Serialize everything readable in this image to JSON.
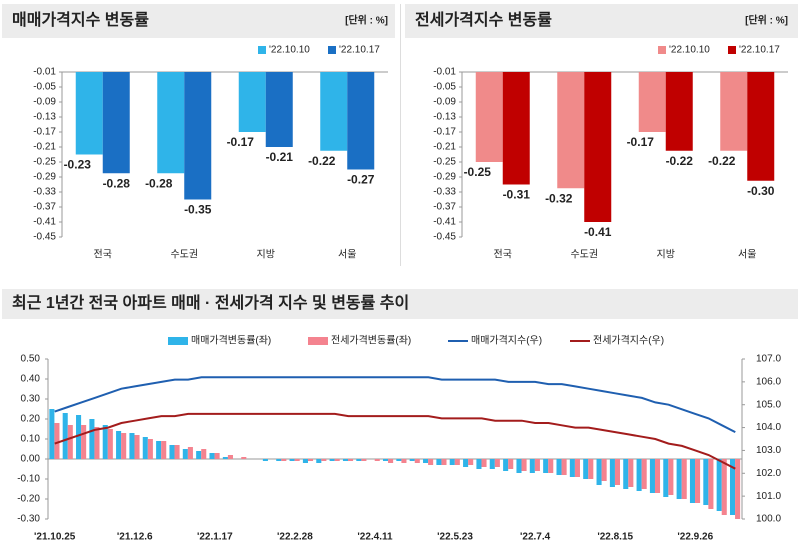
{
  "chart_data": [
    {
      "type": "bar",
      "title": "매매가격지수 변동률",
      "unit": "[단위 : %]",
      "categories": [
        "전국",
        "수도권",
        "지방",
        "서울"
      ],
      "series": [
        {
          "name": "'22.10.10",
          "color": "#2fb4e9",
          "values": [
            -0.23,
            -0.28,
            -0.17,
            -0.22
          ],
          "value_labels": [
            "-0.23",
            "-0.28",
            "-0.17",
            "-0.22"
          ]
        },
        {
          "name": "'22.10.17",
          "color": "#1a6fc4",
          "values": [
            -0.28,
            -0.35,
            -0.21,
            -0.27
          ],
          "value_labels": [
            "-0.28",
            "-0.35",
            "-0.21",
            "-0.27"
          ]
        }
      ],
      "ylim": [
        -0.45,
        -0.01
      ],
      "yticks": [
        -0.01,
        -0.05,
        -0.09,
        -0.13,
        -0.17,
        -0.21,
        -0.25,
        -0.29,
        -0.33,
        -0.37,
        -0.41,
        -0.45
      ]
    },
    {
      "type": "bar",
      "title": "전세가격지수 변동률",
      "unit": "[단위 : %]",
      "categories": [
        "전국",
        "수도권",
        "지방",
        "서울"
      ],
      "series": [
        {
          "name": "'22.10.10",
          "color": "#f08a8a",
          "values": [
            -0.25,
            -0.32,
            -0.17,
            -0.22
          ],
          "value_labels": [
            "-0.25",
            "-0.32",
            "-0.17",
            "-0.22"
          ]
        },
        {
          "name": "'22.10.17",
          "color": "#c00000",
          "values": [
            -0.31,
            -0.41,
            -0.22,
            -0.3
          ],
          "value_labels": [
            "-0.31",
            "-0.41",
            "-0.22",
            "-0.30"
          ]
        }
      ],
      "ylim": [
        -0.45,
        -0.01
      ],
      "yticks": [
        -0.01,
        -0.05,
        -0.09,
        -0.13,
        -0.17,
        -0.21,
        -0.25,
        -0.29,
        -0.33,
        -0.37,
        -0.41,
        -0.45
      ]
    },
    {
      "type": "combo",
      "title": "최근 1년간 전국 아파트 매매 · 전세가격 지수 및 변동률 추이",
      "categories": [
        "'21.10.25",
        null,
        null,
        null,
        null,
        null,
        "'21.12.6",
        null,
        null,
        null,
        null,
        null,
        "'22.1.17",
        null,
        null,
        null,
        null,
        null,
        "'22.2.28",
        null,
        null,
        null,
        null,
        null,
        "'22.4.11",
        null,
        null,
        null,
        null,
        null,
        "'22.5.23",
        null,
        null,
        null,
        null,
        null,
        "'22.7.4",
        null,
        null,
        null,
        null,
        null,
        "'22.8.15",
        null,
        null,
        null,
        null,
        null,
        "'22.9.26",
        null,
        null,
        null
      ],
      "series": [
        {
          "name": "매매가격변동률(좌)",
          "type": "bar",
          "color": "#2fb4e9",
          "values": [
            0.25,
            0.23,
            0.22,
            0.2,
            0.17,
            0.14,
            0.13,
            0.11,
            0.09,
            0.07,
            0.05,
            0.04,
            0.03,
            0.01,
            0.0,
            0.0,
            -0.01,
            -0.01,
            -0.01,
            -0.02,
            -0.02,
            -0.01,
            -0.01,
            -0.01,
            0.0,
            -0.01,
            -0.01,
            -0.01,
            -0.02,
            -0.03,
            -0.03,
            -0.04,
            -0.05,
            -0.05,
            -0.06,
            -0.07,
            -0.07,
            -0.07,
            -0.08,
            -0.09,
            -0.1,
            -0.13,
            -0.14,
            -0.15,
            -0.16,
            -0.17,
            -0.19,
            -0.2,
            -0.22,
            -0.23,
            -0.26,
            -0.28
          ]
        },
        {
          "name": "전세가격변동률(좌)",
          "type": "bar",
          "color": "#f4838f",
          "values": [
            0.18,
            0.17,
            0.17,
            0.16,
            0.15,
            0.13,
            0.12,
            0.1,
            0.09,
            0.07,
            0.06,
            0.05,
            0.03,
            0.02,
            0.01,
            0.0,
            0.0,
            -0.01,
            -0.01,
            -0.01,
            -0.01,
            -0.01,
            -0.01,
            -0.01,
            -0.01,
            -0.02,
            -0.02,
            -0.02,
            -0.03,
            -0.03,
            -0.03,
            -0.03,
            -0.04,
            -0.04,
            -0.05,
            -0.06,
            -0.06,
            -0.07,
            -0.08,
            -0.09,
            -0.1,
            -0.11,
            -0.13,
            -0.14,
            -0.15,
            -0.17,
            -0.18,
            -0.2,
            -0.22,
            -0.25,
            -0.28,
            -0.3
          ]
        },
        {
          "name": "매매가격지수(우)",
          "type": "line",
          "axis": "y2",
          "color": "#1f5fb0",
          "values": [
            104.7,
            104.9,
            105.1,
            105.3,
            105.5,
            105.7,
            105.8,
            105.9,
            106.0,
            106.1,
            106.1,
            106.2,
            106.2,
            106.2,
            106.2,
            106.2,
            106.2,
            106.2,
            106.2,
            106.2,
            106.2,
            106.2,
            106.2,
            106.2,
            106.2,
            106.2,
            106.2,
            106.2,
            106.2,
            106.1,
            106.1,
            106.1,
            106.1,
            106.1,
            106.0,
            106.0,
            106.0,
            105.9,
            105.9,
            105.8,
            105.7,
            105.6,
            105.5,
            105.4,
            105.3,
            105.1,
            105.0,
            104.8,
            104.6,
            104.4,
            104.1,
            103.8
          ]
        },
        {
          "name": "전세가격지수(우)",
          "type": "line",
          "axis": "y2",
          "color": "#a31c1c",
          "values": [
            103.3,
            103.5,
            103.7,
            103.9,
            104.0,
            104.2,
            104.3,
            104.4,
            104.5,
            104.5,
            104.6,
            104.6,
            104.6,
            104.6,
            104.6,
            104.6,
            104.6,
            104.6,
            104.6,
            104.6,
            104.6,
            104.6,
            104.5,
            104.5,
            104.5,
            104.5,
            104.5,
            104.5,
            104.5,
            104.4,
            104.4,
            104.4,
            104.4,
            104.3,
            104.3,
            104.3,
            104.2,
            104.2,
            104.1,
            104.0,
            104.0,
            103.9,
            103.8,
            103.7,
            103.6,
            103.5,
            103.3,
            103.2,
            103.0,
            102.8,
            102.5,
            102.2
          ]
        }
      ],
      "ylim": [
        -0.3,
        0.5
      ],
      "yticks": [
        {
          "value": 0.5,
          "label": "0.50"
        },
        {
          "value": 0.4,
          "label": "0.40"
        },
        {
          "value": 0.3,
          "label": "0.30"
        },
        {
          "value": 0.2,
          "label": "0.20"
        },
        {
          "value": 0.1,
          "label": "0.10"
        },
        {
          "value": 0,
          "label": "0.00"
        },
        {
          "value": -0.1,
          "label": "-0.10"
        },
        {
          "value": -0.2,
          "label": "-0.20"
        },
        {
          "value": -0.3,
          "label": "-0.30"
        }
      ],
      "y2lim": [
        100,
        107
      ],
      "y2ticks": [
        {
          "value": 107,
          "label": "107.0"
        },
        {
          "value": 106,
          "label": "106.0"
        },
        {
          "value": 105,
          "label": "105.0"
        },
        {
          "value": 104,
          "label": "104.0"
        },
        {
          "value": 103,
          "label": "103.0"
        },
        {
          "value": 102,
          "label": "102.0"
        },
        {
          "value": 101,
          "label": "101.0"
        },
        {
          "value": 100,
          "label": "100.0"
        }
      ]
    }
  ]
}
